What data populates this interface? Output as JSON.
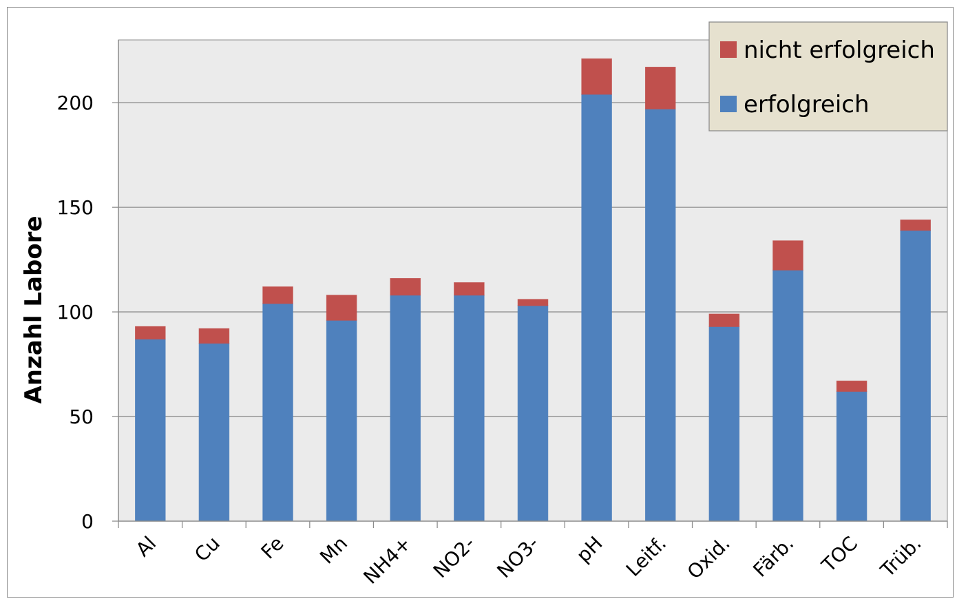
{
  "chart_data": {
    "type": "bar",
    "stacked": true,
    "title": "",
    "xlabel": "",
    "ylabel": "Anzahl Labore",
    "ylim": [
      0,
      230
    ],
    "yticks": [
      0,
      50,
      100,
      150,
      200
    ],
    "grid": true,
    "legend_position": "top-right",
    "categories": [
      "Al",
      "Cu",
      "Fe",
      "Mn",
      "NH4+",
      "NO2-",
      "NO3-",
      "pH",
      "Leitf.",
      "Oxid.",
      "Färb.",
      "TOC",
      "Trüb."
    ],
    "series": [
      {
        "name": "erfolgreich",
        "color": "#4f81bd",
        "values": [
          87,
          85,
          104,
          96,
          108,
          108,
          103,
          204,
          197,
          93,
          120,
          62,
          139
        ]
      },
      {
        "name": "nicht erfolgreich",
        "color": "#c0504d",
        "values": [
          6,
          7,
          8,
          12,
          8,
          6,
          3,
          17,
          20,
          6,
          14,
          5,
          5
        ]
      }
    ]
  },
  "legend": {
    "items": [
      {
        "label": "nicht erfolgreich",
        "color": "#c0504d"
      },
      {
        "label": "erfolgreich",
        "color": "#4f81bd"
      }
    ]
  },
  "colors": {
    "plot_background": "#ebebeb",
    "gridline": "#8c8c8c",
    "legend_background": "#e6e1cf"
  }
}
